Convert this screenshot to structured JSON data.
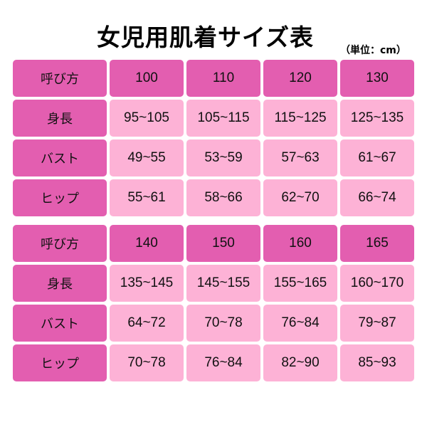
{
  "title": "女児用肌着サイズ表",
  "unit": "（単位：cm）",
  "colors": {
    "header": "#e35eb0",
    "cell": "#fdb2d6"
  },
  "tables": [
    {
      "header": {
        "label": "呼び方",
        "sizes": [
          "100",
          "110",
          "120",
          "130"
        ]
      },
      "rows": [
        {
          "label": "身長",
          "values": [
            "95~105",
            "105~115",
            "115~125",
            "125~135"
          ]
        },
        {
          "label": "バスト",
          "values": [
            "49~55",
            "53~59",
            "57~63",
            "61~67"
          ]
        },
        {
          "label": "ヒップ",
          "values": [
            "55~61",
            "58~66",
            "62~70",
            "66~74"
          ]
        }
      ]
    },
    {
      "header": {
        "label": "呼び方",
        "sizes": [
          "140",
          "150",
          "160",
          "165"
        ]
      },
      "rows": [
        {
          "label": "身長",
          "values": [
            "135~145",
            "145~155",
            "155~165",
            "160~170"
          ]
        },
        {
          "label": "バスト",
          "values": [
            "64~72",
            "70~78",
            "76~84",
            "79~87"
          ]
        },
        {
          "label": "ヒップ",
          "values": [
            "70~78",
            "76~84",
            "82~90",
            "85~93"
          ]
        }
      ]
    }
  ]
}
